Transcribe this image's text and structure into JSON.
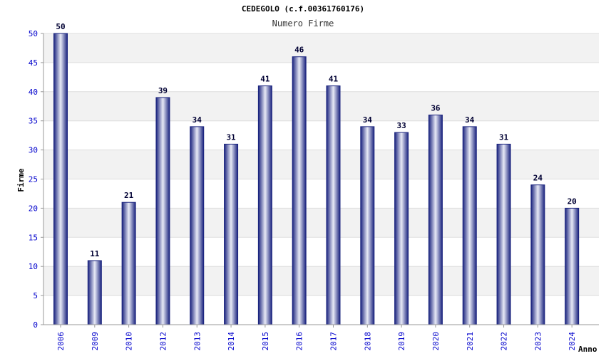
{
  "chart_data": {
    "type": "bar",
    "title": "CEDEGOLO (c.f.00361760176)",
    "subtitle": "Numero Firme",
    "xlabel": "Anno",
    "ylabel": "Firme",
    "ylim": [
      0,
      50
    ],
    "yticks": [
      "0",
      "5",
      "10",
      "15",
      "20",
      "25",
      "30",
      "35",
      "40",
      "45",
      "50"
    ],
    "categories": [
      "2006",
      "2009",
      "2010",
      "2012",
      "2013",
      "2014",
      "2015",
      "2016",
      "2017",
      "2018",
      "2019",
      "2020",
      "2021",
      "2022",
      "2023",
      "2024"
    ],
    "values": [
      50,
      11,
      21,
      39,
      34,
      31,
      41,
      46,
      41,
      34,
      33,
      36,
      34,
      31,
      24,
      20
    ],
    "grid": true,
    "colors": {
      "bar_dark": "#1a237e",
      "bar_mid": "#5c6bc0",
      "bar_light": "#e8eaf6",
      "band_alt": "#f2f2f2",
      "grid_line": "#dddddd",
      "tick_text": "#0000cc"
    }
  }
}
